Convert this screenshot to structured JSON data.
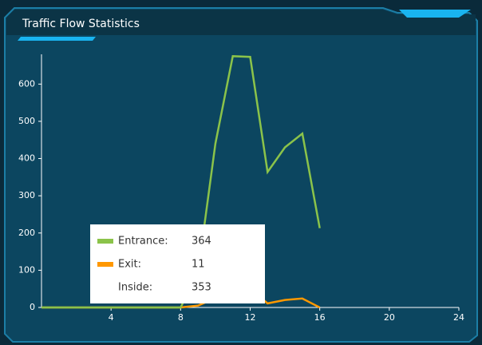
{
  "chart_data": {
    "type": "line",
    "title": "Traffic Flow Statistics",
    "x": [
      0,
      1,
      2,
      3,
      4,
      5,
      6,
      7,
      8,
      9,
      10,
      11,
      12,
      13,
      14,
      15,
      16
    ],
    "series": [
      {
        "name": "Entrance",
        "color": "#8bc34a",
        "values": [
          0,
          0,
          0,
          0,
          0,
          0,
          0,
          0,
          0,
          94,
          440,
          675,
          673,
          364,
          430,
          467,
          213
        ]
      },
      {
        "name": "Exit",
        "color": "#ff9800",
        "values": [
          0,
          0,
          0,
          0,
          0,
          0,
          0,
          0,
          0,
          5,
          25,
          45,
          50,
          11,
          20,
          24,
          0
        ]
      }
    ],
    "xlim": [
      0,
      24
    ],
    "xticks": [
      4,
      8,
      12,
      16,
      20,
      24
    ],
    "ylim": [
      0,
      680
    ],
    "yticks": [
      0,
      100,
      200,
      300,
      400,
      500,
      600
    ],
    "tooltip": {
      "rows": [
        {
          "label": "Entrance:",
          "value": 364,
          "color": "#8bc34a"
        },
        {
          "label": "Exit:",
          "value": 11,
          "color": "#ff9800"
        },
        {
          "label": "Inside:",
          "value": 353
        }
      ]
    }
  }
}
